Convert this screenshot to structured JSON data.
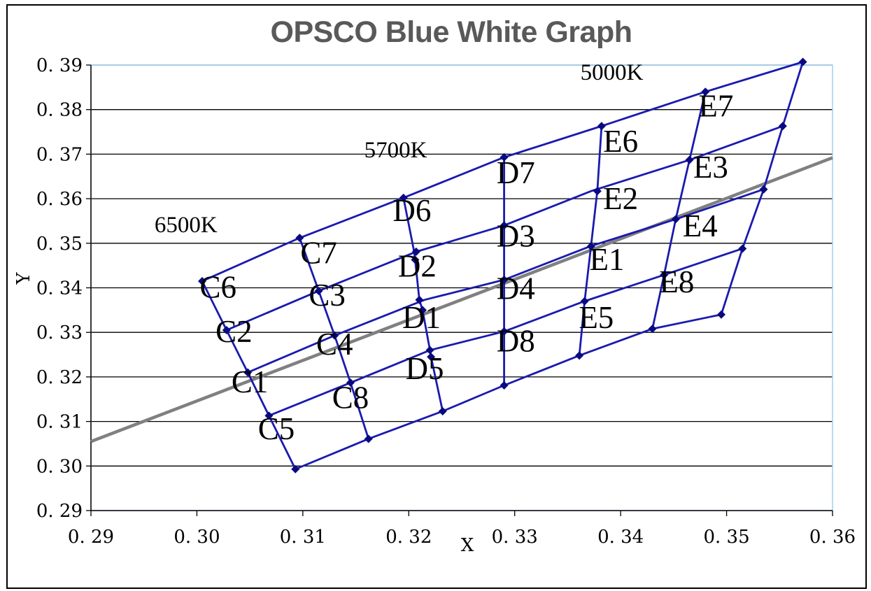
{
  "chart_data": {
    "type": "scatter",
    "title": "OPSCO Blue White Graph",
    "xlabel": "X",
    "ylabel": "Y",
    "xlim": [
      0.29,
      0.36
    ],
    "ylim": [
      0.29,
      0.39
    ],
    "x_ticks": [
      "0. 29",
      "0. 30",
      "0. 31",
      "0. 32",
      "0. 33",
      "0. 34",
      "0. 35",
      "0. 36"
    ],
    "y_ticks": [
      "0. 29",
      "0. 30",
      "0. 31",
      "0. 32",
      "0. 33",
      "0. 34",
      "0. 35",
      "0. 36",
      "0. 37",
      "0. 38",
      "0. 39"
    ],
    "grid": "horizontal",
    "colors": {
      "grid_lines": "#1a1ab0",
      "points": "#0a0a80",
      "reference_line": "#808080",
      "title": "#595959"
    },
    "reference_line": {
      "points": [
        [
          0.29,
          0.3055
        ],
        [
          0.36,
          0.3692
        ]
      ]
    },
    "bin_polylines": [
      [
        [
          0.3005,
          0.3415
        ],
        [
          0.3097,
          0.3512
        ],
        [
          0.3195,
          0.3602
        ],
        [
          0.329,
          0.3693
        ],
        [
          0.3382,
          0.3763
        ],
        [
          0.348,
          0.384
        ],
        [
          0.3572,
          0.3907
        ]
      ],
      [
        [
          0.3028,
          0.3305
        ],
        [
          0.3115,
          0.3393
        ],
        [
          0.3207,
          0.3481
        ],
        [
          0.329,
          0.354
        ],
        [
          0.3372,
          0.3617
        ],
        [
          0.3465,
          0.3687
        ],
        [
          0.3553,
          0.3763
        ]
      ],
      [
        [
          0.3048,
          0.321
        ],
        [
          0.313,
          0.3293
        ],
        [
          0.3215,
          0.3373
        ],
        [
          0.329,
          0.3418
        ],
        [
          0.3371,
          0.3493
        ],
        [
          0.3452,
          0.3554
        ],
        [
          0.3535,
          0.3621
        ]
      ],
      [
        [
          0.3068,
          0.3113
        ],
        [
          0.3145,
          0.3187
        ],
        [
          0.322,
          0.326
        ],
        [
          0.329,
          0.3302
        ],
        [
          0.3366,
          0.337
        ],
        [
          0.3441,
          0.3429
        ],
        [
          0.3515,
          0.3488
        ]
      ],
      [
        [
          0.3093,
          0.2993
        ],
        [
          0.3162,
          0.3061
        ],
        [
          0.3232,
          0.3123
        ],
        [
          0.329,
          0.3181
        ],
        [
          0.3361,
          0.3248
        ],
        [
          0.343,
          0.3308
        ]
      ],
      [
        [
          0.3005,
          0.3415
        ],
        [
          0.3028,
          0.3305
        ],
        [
          0.3048,
          0.321
        ],
        [
          0.3068,
          0.3113
        ],
        [
          0.3093,
          0.2993
        ]
      ],
      [
        [
          0.3097,
          0.3512
        ],
        [
          0.3115,
          0.3393
        ],
        [
          0.313,
          0.3293
        ],
        [
          0.3145,
          0.3187
        ],
        [
          0.3162,
          0.3061
        ]
      ],
      [
        [
          0.3195,
          0.3602
        ],
        [
          0.3205,
          0.3482
        ],
        [
          0.3206,
          0.3463
        ],
        [
          0.321,
          0.3373
        ],
        [
          0.3213,
          0.335
        ],
        [
          0.322,
          0.326
        ],
        [
          0.3221,
          0.3245
        ],
        [
          0.3232,
          0.3123
        ]
      ],
      [
        [
          0.329,
          0.3693
        ],
        [
          0.329,
          0.354
        ],
        [
          0.329,
          0.3418
        ],
        [
          0.329,
          0.3302
        ],
        [
          0.329,
          0.3181
        ]
      ],
      [
        [
          0.3382,
          0.3763
        ],
        [
          0.3378,
          0.3618
        ],
        [
          0.3372,
          0.3493
        ],
        [
          0.3366,
          0.337
        ],
        [
          0.3361,
          0.3248
        ]
      ],
      [
        [
          0.348,
          0.384
        ],
        [
          0.3465,
          0.3687
        ],
        [
          0.3452,
          0.3554
        ],
        [
          0.3441,
          0.3429
        ],
        [
          0.343,
          0.3308
        ]
      ],
      [
        [
          0.3572,
          0.3907
        ],
        [
          0.3553,
          0.3763
        ],
        [
          0.3535,
          0.3621
        ],
        [
          0.3515,
          0.3488
        ],
        [
          0.3495,
          0.334
        ],
        [
          0.343,
          0.3308
        ]
      ]
    ],
    "points": [
      [
        0.3005,
        0.3415
      ],
      [
        0.3097,
        0.3512
      ],
      [
        0.3195,
        0.3602
      ],
      [
        0.329,
        0.3693
      ],
      [
        0.3382,
        0.3763
      ],
      [
        0.348,
        0.384
      ],
      [
        0.3572,
        0.3907
      ],
      [
        0.3028,
        0.3305
      ],
      [
        0.3115,
        0.3393
      ],
      [
        0.3207,
        0.3481
      ],
      [
        0.329,
        0.354
      ],
      [
        0.3378,
        0.3617
      ],
      [
        0.3465,
        0.3687
      ],
      [
        0.3553,
        0.3763
      ],
      [
        0.3048,
        0.321
      ],
      [
        0.313,
        0.3293
      ],
      [
        0.3206,
        0.3463
      ],
      [
        0.321,
        0.3373
      ],
      [
        0.329,
        0.3418
      ],
      [
        0.3372,
        0.3493
      ],
      [
        0.3452,
        0.3554
      ],
      [
        0.3535,
        0.3621
      ],
      [
        0.3068,
        0.3113
      ],
      [
        0.3145,
        0.3187
      ],
      [
        0.3213,
        0.335
      ],
      [
        0.322,
        0.326
      ],
      [
        0.329,
        0.3302
      ],
      [
        0.3366,
        0.337
      ],
      [
        0.3441,
        0.3429
      ],
      [
        0.3515,
        0.3488
      ],
      [
        0.3093,
        0.2993
      ],
      [
        0.3162,
        0.3061
      ],
      [
        0.3221,
        0.3245
      ],
      [
        0.3232,
        0.3123
      ],
      [
        0.329,
        0.3181
      ],
      [
        0.3361,
        0.3248
      ],
      [
        0.343,
        0.3308
      ],
      [
        0.3495,
        0.334
      ]
    ],
    "bin_labels": [
      {
        "text": "C6",
        "x": 0.302,
        "y": 0.3378
      },
      {
        "text": "C2",
        "x": 0.3035,
        "y": 0.3278
      },
      {
        "text": "C1",
        "x": 0.305,
        "y": 0.3165
      },
      {
        "text": "C5",
        "x": 0.3075,
        "y": 0.306
      },
      {
        "text": "C7",
        "x": 0.3115,
        "y": 0.3455
      },
      {
        "text": "C3",
        "x": 0.3123,
        "y": 0.336
      },
      {
        "text": "C4",
        "x": 0.313,
        "y": 0.325
      },
      {
        "text": "C8",
        "x": 0.3145,
        "y": 0.313
      },
      {
        "text": "D6",
        "x": 0.3203,
        "y": 0.355
      },
      {
        "text": "D2",
        "x": 0.3208,
        "y": 0.3425
      },
      {
        "text": "D1",
        "x": 0.3212,
        "y": 0.331
      },
      {
        "text": "D5",
        "x": 0.3215,
        "y": 0.3195
      },
      {
        "text": "D7",
        "x": 0.3301,
        "y": 0.3635
      },
      {
        "text": "D3",
        "x": 0.3301,
        "y": 0.3493
      },
      {
        "text": "D4",
        "x": 0.3301,
        "y": 0.3375
      },
      {
        "text": "D8",
        "x": 0.3301,
        "y": 0.3257
      },
      {
        "text": "E6",
        "x": 0.34,
        "y": 0.3705
      },
      {
        "text": "E2",
        "x": 0.34,
        "y": 0.3577
      },
      {
        "text": "E1",
        "x": 0.3387,
        "y": 0.344
      },
      {
        "text": "E5",
        "x": 0.3377,
        "y": 0.331
      },
      {
        "text": "E7",
        "x": 0.349,
        "y": 0.3785
      },
      {
        "text": "E3",
        "x": 0.3485,
        "y": 0.3647
      },
      {
        "text": "E4",
        "x": 0.3475,
        "y": 0.3515
      },
      {
        "text": "E8",
        "x": 0.3453,
        "y": 0.339
      }
    ],
    "cct_labels": [
      {
        "text": "6500K",
        "x": 0.296,
        "y": 0.3525
      },
      {
        "text": "5700K",
        "x": 0.3158,
        "y": 0.3693
      },
      {
        "text": "5000K",
        "x": 0.3362,
        "y": 0.3867
      }
    ]
  }
}
